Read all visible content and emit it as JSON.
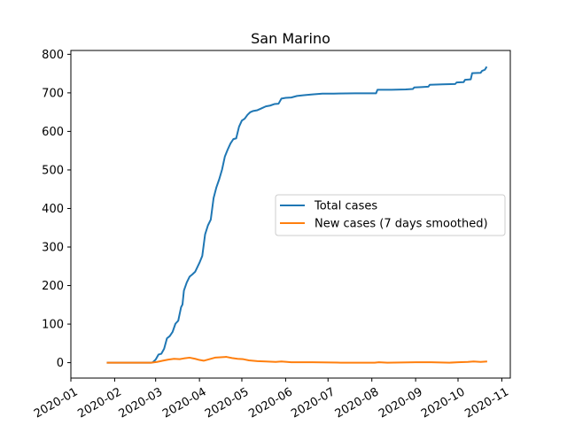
{
  "chart_data": {
    "type": "line",
    "title": "San Marino",
    "xlabel": "",
    "ylabel": "",
    "x_axis": {
      "kind": "date",
      "range": [
        "2020-01-01",
        "2020-11-07"
      ],
      "ticks": [
        {
          "date": "2020-01-01",
          "label": "2020-01"
        },
        {
          "date": "2020-02-01",
          "label": "2020-02"
        },
        {
          "date": "2020-03-01",
          "label": "2020-03"
        },
        {
          "date": "2020-04-01",
          "label": "2020-04"
        },
        {
          "date": "2020-05-01",
          "label": "2020-05"
        },
        {
          "date": "2020-06-01",
          "label": "2020-06"
        },
        {
          "date": "2020-07-01",
          "label": "2020-07"
        },
        {
          "date": "2020-08-01",
          "label": "2020-08"
        },
        {
          "date": "2020-09-01",
          "label": "2020-09"
        },
        {
          "date": "2020-10-01",
          "label": "2020-10"
        },
        {
          "date": "2020-11-01",
          "label": "2020-11"
        }
      ]
    },
    "y_axis": {
      "range": [
        -40,
        810
      ],
      "ticks": [
        0,
        100,
        200,
        300,
        400,
        500,
        600,
        700,
        800
      ]
    },
    "grid": false,
    "legend": {
      "placement": "center-right",
      "entries": [
        "Total cases",
        "New cases (7 days smoothed)"
      ]
    },
    "series": [
      {
        "name": "Total cases",
        "color": "#1f77b4",
        "points": [
          [
            "2020-01-27",
            0
          ],
          [
            "2020-02-27",
            0
          ],
          [
            "2020-02-28",
            1
          ],
          [
            "2020-03-01",
            8
          ],
          [
            "2020-03-03",
            21
          ],
          [
            "2020-03-05",
            23
          ],
          [
            "2020-03-07",
            36
          ],
          [
            "2020-03-09",
            63
          ],
          [
            "2020-03-11",
            69
          ],
          [
            "2020-03-13",
            80
          ],
          [
            "2020-03-15",
            101
          ],
          [
            "2020-03-17",
            109
          ],
          [
            "2020-03-19",
            144
          ],
          [
            "2020-03-20",
            151
          ],
          [
            "2020-03-21",
            187
          ],
          [
            "2020-03-23",
            208
          ],
          [
            "2020-03-25",
            223
          ],
          [
            "2020-03-27",
            229
          ],
          [
            "2020-03-29",
            236
          ],
          [
            "2020-04-01",
            259
          ],
          [
            "2020-04-03",
            277
          ],
          [
            "2020-04-05",
            333
          ],
          [
            "2020-04-07",
            356
          ],
          [
            "2020-04-09",
            371
          ],
          [
            "2020-04-11",
            427
          ],
          [
            "2020-04-13",
            455
          ],
          [
            "2020-04-15",
            476
          ],
          [
            "2020-04-17",
            501
          ],
          [
            "2020-04-19",
            535
          ],
          [
            "2020-04-21",
            553
          ],
          [
            "2020-04-23",
            569
          ],
          [
            "2020-04-25",
            580
          ],
          [
            "2020-04-27",
            582
          ],
          [
            "2020-04-29",
            612
          ],
          [
            "2020-05-01",
            628
          ],
          [
            "2020-05-03",
            633
          ],
          [
            "2020-05-05",
            643
          ],
          [
            "2020-05-07",
            650
          ],
          [
            "2020-05-09",
            653
          ],
          [
            "2020-05-12",
            655
          ],
          [
            "2020-05-15",
            660
          ],
          [
            "2020-05-18",
            665
          ],
          [
            "2020-05-21",
            667
          ],
          [
            "2020-05-24",
            671
          ],
          [
            "2020-05-27",
            672
          ],
          [
            "2020-05-29",
            685
          ],
          [
            "2020-06-01",
            687
          ],
          [
            "2020-06-05",
            688
          ],
          [
            "2020-06-09",
            692
          ],
          [
            "2020-06-14",
            694
          ],
          [
            "2020-06-20",
            696
          ],
          [
            "2020-06-27",
            698
          ],
          [
            "2020-07-05",
            698
          ],
          [
            "2020-07-20",
            699
          ],
          [
            "2020-08-01",
            699
          ],
          [
            "2020-08-04",
            699
          ],
          [
            "2020-08-05",
            708
          ],
          [
            "2020-08-15",
            708
          ],
          [
            "2020-08-25",
            709
          ],
          [
            "2020-08-30",
            710
          ],
          [
            "2020-08-31",
            714
          ],
          [
            "2020-09-05",
            715
          ],
          [
            "2020-09-10",
            716
          ],
          [
            "2020-09-11",
            721
          ],
          [
            "2020-09-20",
            722
          ],
          [
            "2020-09-29",
            723
          ],
          [
            "2020-09-30",
            727
          ],
          [
            "2020-10-05",
            728
          ],
          [
            "2020-10-06",
            734
          ],
          [
            "2020-10-10",
            735
          ],
          [
            "2020-10-11",
            751
          ],
          [
            "2020-10-17",
            752
          ],
          [
            "2020-10-18",
            757
          ],
          [
            "2020-10-20",
            760
          ],
          [
            "2020-10-21",
            766
          ]
        ]
      },
      {
        "name": "New cases (7 days smoothed)",
        "color": "#ff7f0e",
        "points": [
          [
            "2020-01-27",
            0
          ],
          [
            "2020-02-27",
            0
          ],
          [
            "2020-03-02",
            2
          ],
          [
            "2020-03-06",
            5
          ],
          [
            "2020-03-10",
            8
          ],
          [
            "2020-03-14",
            10
          ],
          [
            "2020-03-18",
            9
          ],
          [
            "2020-03-21",
            11
          ],
          [
            "2020-03-25",
            13
          ],
          [
            "2020-03-29",
            10
          ],
          [
            "2020-04-01",
            7
          ],
          [
            "2020-04-04",
            5
          ],
          [
            "2020-04-08",
            9
          ],
          [
            "2020-04-12",
            13
          ],
          [
            "2020-04-16",
            14
          ],
          [
            "2020-04-20",
            15
          ],
          [
            "2020-04-24",
            12
          ],
          [
            "2020-04-28",
            10
          ],
          [
            "2020-05-02",
            9
          ],
          [
            "2020-05-06",
            6
          ],
          [
            "2020-05-12",
            4
          ],
          [
            "2020-05-18",
            3
          ],
          [
            "2020-05-25",
            2
          ],
          [
            "2020-05-29",
            3
          ],
          [
            "2020-06-05",
            1
          ],
          [
            "2020-06-20",
            1
          ],
          [
            "2020-07-10",
            0
          ],
          [
            "2020-08-03",
            0
          ],
          [
            "2020-08-06",
            1
          ],
          [
            "2020-08-12",
            0
          ],
          [
            "2020-09-01",
            1
          ],
          [
            "2020-09-12",
            1
          ],
          [
            "2020-09-25",
            0
          ],
          [
            "2020-10-01",
            1
          ],
          [
            "2020-10-08",
            2
          ],
          [
            "2020-10-12",
            3
          ],
          [
            "2020-10-17",
            2
          ],
          [
            "2020-10-21",
            3
          ]
        ]
      }
    ]
  }
}
